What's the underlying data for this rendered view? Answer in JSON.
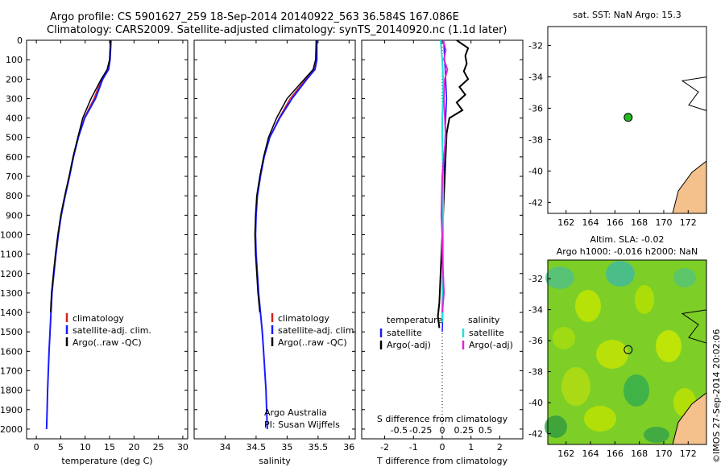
{
  "header": {
    "line1": "Argo profile: CS 5901627_259 18-Sep-2014 20140922_563 36.584S 167.086E",
    "line2": "Climatology: CARS2009. Satellite-adjusted climatology: synTS_20140920.nc (1.1d later)"
  },
  "colors": {
    "climatology": "#d62020",
    "satellite": "#1a1aff",
    "argo": "#000000",
    "sal_satellite": "#22dddd",
    "sal_argo": "#dd22dd",
    "land": "#f4c08c"
  },
  "chart_data": [
    {
      "type": "line",
      "id": "temperature",
      "xlabel": "temperature (deg C)",
      "xlim": [
        -2,
        31
      ],
      "xticks": [
        "0",
        "5",
        "10",
        "15",
        "20",
        "25",
        "30"
      ],
      "ylim": [
        0,
        2050
      ],
      "yticks": [
        "0",
        "100",
        "200",
        "300",
        "400",
        "500",
        "600",
        "700",
        "800",
        "900",
        "1000",
        "1100",
        "1200",
        "1300",
        "1400",
        "1500",
        "1600",
        "1700",
        "1800",
        "1900",
        "2000"
      ],
      "legend": [
        "climatology",
        "satellite-adj. clim.",
        "Argo(..raw -QC)"
      ],
      "series": [
        {
          "name": "climatology",
          "depth": [
            0,
            100,
            150,
            200,
            300,
            400,
            500,
            600,
            700,
            800,
            900,
            1000,
            1100,
            1200,
            1300,
            1400,
            1500,
            1600
          ],
          "values": [
            15.2,
            15.0,
            14.7,
            13.4,
            11.8,
            9.8,
            8.6,
            7.6,
            6.8,
            5.9,
            5.1,
            4.5,
            4.0,
            3.6,
            3.2,
            3.0,
            2.8,
            2.6
          ]
        },
        {
          "name": "satellite-adj. clim.",
          "depth": [
            0,
            100,
            150,
            200,
            300,
            400,
            500,
            600,
            700,
            800,
            900,
            1000,
            1100,
            1200,
            1300,
            1400,
            1500,
            1600,
            1700,
            1800,
            1900,
            2000
          ],
          "values": [
            15.3,
            15.1,
            14.8,
            13.6,
            12.1,
            9.9,
            8.6,
            7.6,
            6.8,
            5.9,
            5.1,
            4.5,
            4.0,
            3.6,
            3.2,
            3.0,
            2.8,
            2.6,
            2.45,
            2.3,
            2.2,
            2.1
          ]
        },
        {
          "name": "Argo(..raw -QC)",
          "depth": [
            0,
            100,
            150,
            200,
            300,
            400,
            500,
            600,
            700,
            800,
            900,
            1000,
            1100,
            1200,
            1300,
            1400
          ],
          "values": [
            15.2,
            15.0,
            14.5,
            13.3,
            11.2,
            9.5,
            8.5,
            7.5,
            6.7,
            5.8,
            5.0,
            4.4,
            3.9,
            3.5,
            3.1,
            2.9
          ]
        }
      ]
    },
    {
      "type": "line",
      "id": "salinity",
      "xlabel": "salinity",
      "xlim": [
        33.5,
        36.1
      ],
      "xticks": [
        "34",
        "34.5",
        "35",
        "35.5",
        "36"
      ],
      "ylim": [
        0,
        2050
      ],
      "legend": [
        "climatology",
        "satellite-adj. clim.",
        "Argo(..raw -QC)"
      ],
      "annotation": [
        "Argo Australia",
        "PI: Susan Wijffels"
      ],
      "series": [
        {
          "name": "climatology",
          "depth": [
            0,
            100,
            150,
            200,
            300,
            400,
            500,
            600,
            700,
            800,
            900,
            1000,
            1100,
            1200,
            1300,
            1400,
            1500,
            1600
          ],
          "values": [
            35.47,
            35.47,
            35.44,
            35.3,
            35.05,
            34.87,
            34.72,
            34.63,
            34.57,
            34.52,
            34.5,
            34.49,
            34.5,
            34.52,
            34.54,
            34.57,
            34.6,
            34.62
          ]
        },
        {
          "name": "satellite-adj. clim.",
          "depth": [
            0,
            100,
            150,
            200,
            300,
            400,
            500,
            600,
            700,
            800,
            900,
            1000,
            1100,
            1200,
            1300,
            1400,
            1500,
            1600,
            1700,
            1800,
            1900,
            2000
          ],
          "values": [
            35.48,
            35.48,
            35.45,
            35.32,
            35.08,
            34.88,
            34.72,
            34.63,
            34.57,
            34.52,
            34.5,
            34.49,
            34.5,
            34.52,
            34.54,
            34.57,
            34.6,
            34.62,
            34.64,
            34.66,
            34.67,
            34.68
          ]
        },
        {
          "name": "Argo(..raw -QC)",
          "depth": [
            0,
            100,
            150,
            200,
            300,
            400,
            500,
            600,
            700,
            800,
            900,
            1000,
            1100,
            1200,
            1300,
            1400
          ],
          "values": [
            35.47,
            35.46,
            35.42,
            35.28,
            35.0,
            34.83,
            34.7,
            34.62,
            34.56,
            34.51,
            34.49,
            34.48,
            34.49,
            34.51,
            34.53,
            34.56
          ]
        }
      ]
    },
    {
      "type": "line",
      "id": "difference",
      "xlabel": "T difference from climatology",
      "xlabel_top": "S difference from climatology",
      "xlim": [
        -2.8,
        2.8
      ],
      "xticks_T": [
        "-2",
        "-1",
        "0",
        "1",
        "2"
      ],
      "xticks_S": [
        "-0.5",
        "-0.25",
        "0",
        "0.25",
        "0.5"
      ],
      "ylim": [
        0,
        2050
      ],
      "legend_T_title": "temperature",
      "legend_S_title": "salinity",
      "legend_T": [
        "satellite",
        "Argo(-adj)"
      ],
      "legend_S": [
        "satellite",
        "Argo(-adj)"
      ],
      "series": [
        {
          "name": "temperature satellite",
          "depth": [
            0,
            100,
            200,
            300,
            400,
            500,
            700,
            900,
            1100,
            1300,
            1450,
            1500
          ],
          "values": [
            0.05,
            0.08,
            0.12,
            0.15,
            0.12,
            0.1,
            0.05,
            0.03,
            0.02,
            0.02,
            0.01,
            0.0
          ]
        },
        {
          "name": "temperature Argo(-adj)",
          "depth": [
            0,
            40,
            80,
            120,
            160,
            200,
            240,
            280,
            320,
            360,
            400,
            440,
            480,
            1350,
            1420,
            1480
          ],
          "values": [
            0.5,
            0.9,
            0.8,
            0.85,
            0.75,
            0.9,
            0.6,
            0.8,
            0.5,
            0.7,
            0.25,
            0.2,
            0.15,
            -0.1,
            -0.15,
            -0.1
          ]
        },
        {
          "name": "salinity satellite",
          "depth": [
            0,
            100,
            200,
            300,
            400,
            500,
            700,
            900,
            1100,
            1300,
            1450
          ],
          "values": [
            -0.02,
            0.0,
            0.01,
            0.01,
            0.0,
            0.0,
            0.01,
            0.01,
            0.01,
            0.0,
            0.0
          ]
        },
        {
          "name": "salinity Argo(-adj)",
          "depth": [
            0,
            50,
            100,
            150,
            200,
            300,
            400,
            500,
            600,
            700,
            900,
            1000,
            1100,
            1300,
            1400
          ],
          "values": [
            0.01,
            0.04,
            0.02,
            0.06,
            0.03,
            0.02,
            0.03,
            0.04,
            0.02,
            0.0,
            -0.01,
            0.0,
            0.0,
            0.02,
            0.0
          ]
        }
      ]
    },
    {
      "type": "scatter",
      "id": "sst_map",
      "title": "sat. SST: NaN Argo: 15.3",
      "xlim": [
        160.5,
        173.5
      ],
      "ylim": [
        -42.7,
        -30.8
      ],
      "xticks": [
        "162",
        "164",
        "166",
        "168",
        "170",
        "172"
      ],
      "yticks": [
        "-32",
        "-34",
        "-36",
        "-38",
        "-40",
        "-42"
      ],
      "points": [
        {
          "lon": 167.086,
          "lat": -36.584
        }
      ]
    },
    {
      "type": "heatmap",
      "id": "sla_map",
      "title_line1": "Altim. SLA: -0.02",
      "title_line2": "Argo h1000: -0.016 h2000: NaN",
      "xlim": [
        160.5,
        173.5
      ],
      "ylim": [
        -42.7,
        -30.8
      ],
      "xticks": [
        "162",
        "164",
        "166",
        "168",
        "170",
        "172"
      ],
      "yticks": [
        "-32",
        "-34",
        "-36",
        "-38",
        "-40",
        "-42"
      ],
      "points": [
        {
          "lon": 167.086,
          "lat": -36.584
        }
      ]
    }
  ],
  "footer": {
    "stamp": "©IMOS 27-Sep-2014 20:02:06"
  }
}
